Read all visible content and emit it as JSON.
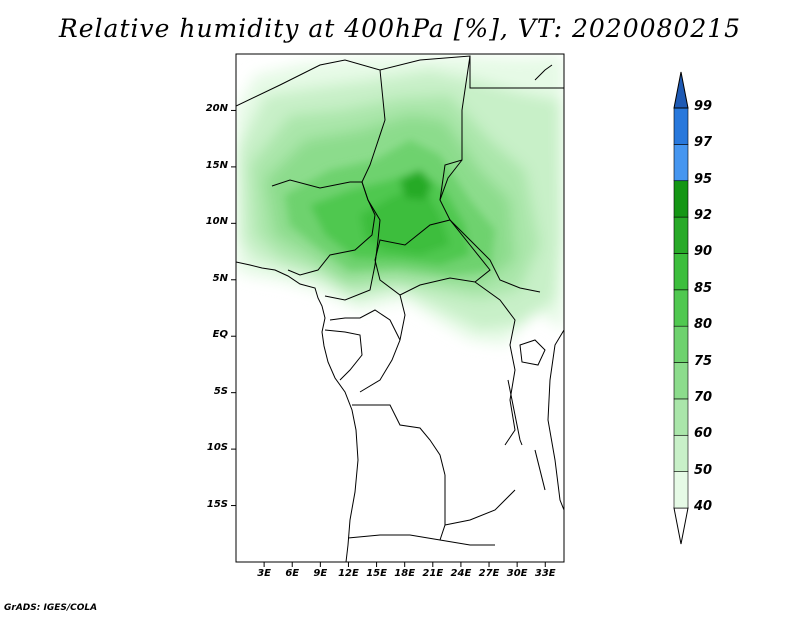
{
  "title": "Relative humidity at 400hPa [%], VT: 2020080215",
  "credit": "GrADS: IGES/COLA",
  "map": {
    "lat_range": [
      -20,
      25
    ],
    "lon_range": [
      0,
      35
    ],
    "lat_ticks": [
      {
        "value": 20,
        "label": "20N"
      },
      {
        "value": 15,
        "label": "15N"
      },
      {
        "value": 10,
        "label": "10N"
      },
      {
        "value": 5,
        "label": "5N"
      },
      {
        "value": 0,
        "label": "EQ"
      },
      {
        "value": -5,
        "label": "5S"
      },
      {
        "value": -10,
        "label": "10S"
      },
      {
        "value": -15,
        "label": "15S"
      }
    ],
    "lon_ticks": [
      {
        "value": 3,
        "label": "3E"
      },
      {
        "value": 6,
        "label": "6E"
      },
      {
        "value": 9,
        "label": "9E"
      },
      {
        "value": 12,
        "label": "12E"
      },
      {
        "value": 15,
        "label": "15E"
      },
      {
        "value": 18,
        "label": "18E"
      },
      {
        "value": 21,
        "label": "21E"
      },
      {
        "value": 24,
        "label": "24E"
      },
      {
        "value": 27,
        "label": "27E"
      },
      {
        "value": 30,
        "label": "30E"
      },
      {
        "value": 33,
        "label": "33E"
      }
    ]
  },
  "colorbar": {
    "levels": [
      "40",
      "50",
      "60",
      "70",
      "75",
      "80",
      "85",
      "90",
      "92",
      "95",
      "97",
      "99"
    ],
    "colors": [
      "#e6fae6",
      "#c8f0c8",
      "#aae6aa",
      "#8cdc8c",
      "#6ed26e",
      "#50c850",
      "#3cbe3c",
      "#28aa28",
      "#149614",
      "#4696f0",
      "#2878dc",
      "#1e5ab4"
    ]
  }
}
